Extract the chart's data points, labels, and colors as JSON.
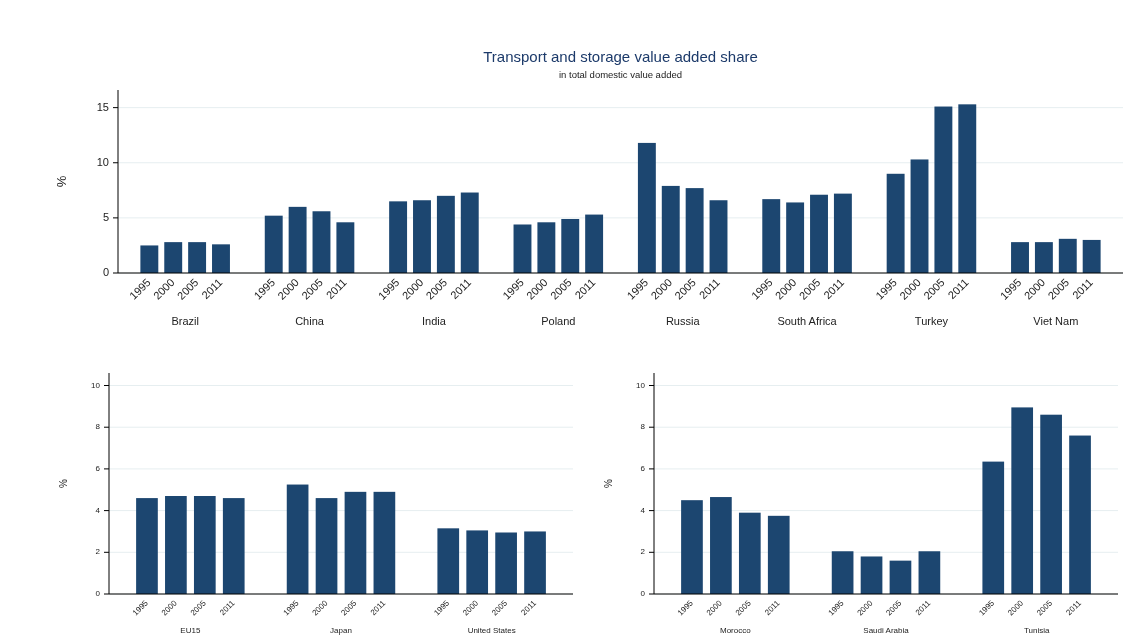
{
  "chart_data": [
    {
      "type": "bar",
      "title": "Transport and storage value added share",
      "subtitle": "in total domestic value added",
      "ylabel": "%",
      "categories": [
        "Brazil",
        "China",
        "India",
        "Poland",
        "Russia",
        "South Africa",
        "Turkey",
        "Viet Nam"
      ],
      "ylim": [
        0,
        16.6
      ],
      "yticks": [
        0,
        5,
        10,
        15
      ],
      "grid": "y",
      "series": [
        {
          "name": "1995",
          "color": "#1c4670",
          "values": [
            2.5,
            5.2,
            6.5,
            4.4,
            11.8,
            6.7,
            9.0,
            2.8
          ]
        },
        {
          "name": "2000",
          "color": "#1c4670",
          "values": [
            2.8,
            6.0,
            6.6,
            4.6,
            7.9,
            6.4,
            10.3,
            2.8
          ]
        },
        {
          "name": "2005",
          "color": "#1c4670",
          "values": [
            2.8,
            5.6,
            7.0,
            4.9,
            7.7,
            7.1,
            15.1,
            3.1
          ]
        },
        {
          "name": "2011",
          "color": "#1c4670",
          "values": [
            2.6,
            4.6,
            7.3,
            5.3,
            6.6,
            7.2,
            15.3,
            3.0
          ]
        }
      ]
    },
    {
      "type": "bar",
      "ylabel": "%",
      "categories": [
        "EU15",
        "Japan",
        "United States"
      ],
      "ylim": [
        0,
        10.6
      ],
      "yticks": [
        0,
        2,
        4,
        6,
        8,
        10
      ],
      "grid": "y",
      "series": [
        {
          "name": "1995",
          "color": "#1c4670",
          "values": [
            4.6,
            5.25,
            3.15
          ]
        },
        {
          "name": "2000",
          "color": "#1c4670",
          "values": [
            4.7,
            4.6,
            3.05
          ]
        },
        {
          "name": "2005",
          "color": "#1c4670",
          "values": [
            4.7,
            4.9,
            2.95
          ]
        },
        {
          "name": "2011",
          "color": "#1c4670",
          "values": [
            4.6,
            4.9,
            3.0
          ]
        }
      ]
    },
    {
      "type": "bar",
      "ylabel": "%",
      "categories": [
        "Morocco",
        "Saudi Arabia",
        "Tunisia"
      ],
      "ylim": [
        0,
        10.6
      ],
      "yticks": [
        0,
        2,
        4,
        6,
        8,
        10
      ],
      "grid": "y",
      "series": [
        {
          "name": "1995",
          "color": "#1c4670",
          "values": [
            4.5,
            2.05,
            6.35
          ]
        },
        {
          "name": "2000",
          "color": "#1c4670",
          "values": [
            4.65,
            1.8,
            8.95
          ]
        },
        {
          "name": "2005",
          "color": "#1c4670",
          "values": [
            3.9,
            1.6,
            8.6
          ]
        },
        {
          "name": "2011",
          "color": "#1c4670",
          "values": [
            3.75,
            2.05,
            7.6
          ]
        }
      ]
    }
  ]
}
